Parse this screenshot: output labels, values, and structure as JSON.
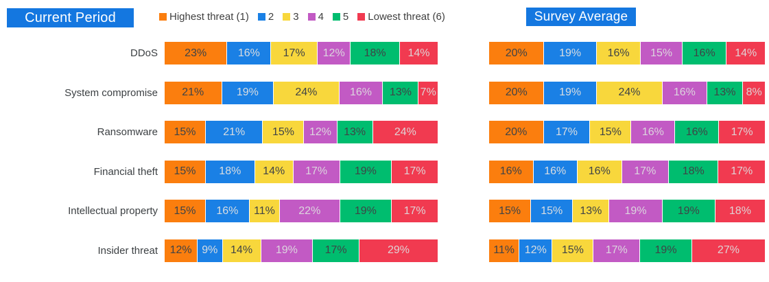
{
  "style": {
    "page_background": "#ffffff",
    "title_bg": "#1477e0",
    "title_text": "#ffffff",
    "segment_separator": "#ffffff",
    "category_label_color": "#3c4043",
    "legend_text_color": "#404040"
  },
  "chart_data": [
    {
      "type": "bar",
      "orientation": "horizontal",
      "stacked": true,
      "title": "Current Period",
      "unit": "%",
      "xlim": [
        0,
        100
      ],
      "legend_position": "top",
      "value_labels": "inside",
      "grid": false,
      "categories": [
        "DDoS",
        "System compromise",
        "Ransomware",
        "Financial theft",
        "Intellectual property",
        "Insider threat"
      ],
      "series": [
        {
          "name": "Highest threat (1)",
          "color": "#fb7e0e",
          "label_color": "#3f4346",
          "values": [
            23,
            21,
            15,
            15,
            15,
            12
          ]
        },
        {
          "name": "2",
          "color": "#1a80e5",
          "label_color": "#d9dde1",
          "values": [
            16,
            19,
            21,
            18,
            16,
            9
          ]
        },
        {
          "name": "3",
          "color": "#f8d73c",
          "label_color": "#3f4346",
          "values": [
            17,
            24,
            15,
            14,
            11,
            14
          ]
        },
        {
          "name": "4",
          "color": "#c25ac4",
          "label_color": "#dcd6de",
          "values": [
            12,
            16,
            12,
            17,
            22,
            19
          ]
        },
        {
          "name": "5",
          "color": "#00bd6f",
          "label_color": "#3f4346",
          "values": [
            18,
            13,
            13,
            19,
            19,
            17
          ]
        },
        {
          "name": "Lowest threat (6)",
          "color": "#f13a50",
          "label_color": "#dfd3d5",
          "values": [
            14,
            7,
            24,
            17,
            17,
            29
          ]
        }
      ]
    },
    {
      "type": "bar",
      "orientation": "horizontal",
      "stacked": true,
      "title": "Survey Average",
      "unit": "%",
      "xlim": [
        0,
        100
      ],
      "legend_position": "none",
      "value_labels": "inside",
      "grid": false,
      "categories": [
        "DDoS",
        "System compromise",
        "Ransomware",
        "Financial theft",
        "Intellectual property",
        "Insider threat"
      ],
      "series": [
        {
          "name": "Highest threat (1)",
          "color": "#fb7e0e",
          "label_color": "#3f4346",
          "values": [
            20,
            20,
            20,
            16,
            15,
            11
          ]
        },
        {
          "name": "2",
          "color": "#1a80e5",
          "label_color": "#d9dde1",
          "values": [
            19,
            19,
            17,
            16,
            15,
            12
          ]
        },
        {
          "name": "3",
          "color": "#f8d73c",
          "label_color": "#3f4346",
          "values": [
            16,
            24,
            15,
            16,
            13,
            15
          ]
        },
        {
          "name": "4",
          "color": "#c25ac4",
          "label_color": "#dcd6de",
          "values": [
            15,
            16,
            16,
            17,
            19,
            17
          ]
        },
        {
          "name": "5",
          "color": "#00bd6f",
          "label_color": "#3f4346",
          "values": [
            16,
            13,
            16,
            18,
            19,
            19
          ]
        },
        {
          "name": "Lowest threat (6)",
          "color": "#f13a50",
          "label_color": "#dfd3d5",
          "values": [
            14,
            8,
            17,
            17,
            18,
            27
          ]
        }
      ]
    }
  ]
}
